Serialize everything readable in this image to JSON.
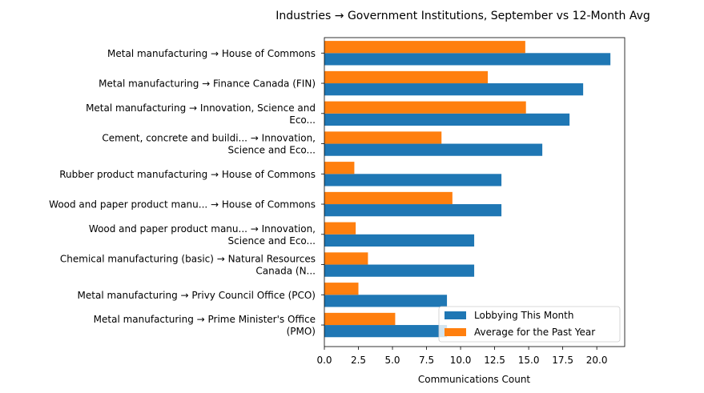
{
  "chart_data": {
    "type": "bar",
    "orientation": "horizontal",
    "title": "Industries → Government Institutions, September vs 12-Month Avg",
    "xlabel": "Communications Count",
    "ylabel": "",
    "xlim": [
      0,
      22.05
    ],
    "xticks": [
      "0.0",
      "2.5",
      "5.0",
      "7.5",
      "10.0",
      "12.5",
      "15.0",
      "17.5",
      "20.0"
    ],
    "grid": false,
    "legend_position": "lower-right",
    "categories": [
      [
        "Metal manufacturing → House of Commons"
      ],
      [
        "Metal manufacturing → Finance Canada (FIN)"
      ],
      [
        "Metal manufacturing → Innovation, Science and",
        "Eco..."
      ],
      [
        "Cement, concrete and buildi... → Innovation,",
        "Science and Eco..."
      ],
      [
        "Rubber product manufacturing → House of Commons"
      ],
      [
        "Wood and paper product manu... → House of Commons"
      ],
      [
        "Wood and paper product manu... → Innovation,",
        "Science and Eco..."
      ],
      [
        "Chemical manufacturing (basic) → Natural Resources",
        "Canada (N..."
      ],
      [
        "Metal manufacturing → Privy Council Office (PCO)"
      ],
      [
        "Metal manufacturing → Prime Minister's Office",
        "(PMO)"
      ]
    ],
    "series": [
      {
        "name": "Lobbying This Month",
        "color": "#1f77b4",
        "values": [
          21,
          19,
          18,
          16,
          13,
          13,
          11,
          11,
          9,
          9
        ]
      },
      {
        "name": "Average for the Past Year",
        "color": "#ff7f0e",
        "values": [
          14.75,
          12.0,
          14.8,
          8.6,
          2.2,
          9.4,
          2.3,
          3.2,
          2.5,
          5.2
        ]
      }
    ]
  }
}
